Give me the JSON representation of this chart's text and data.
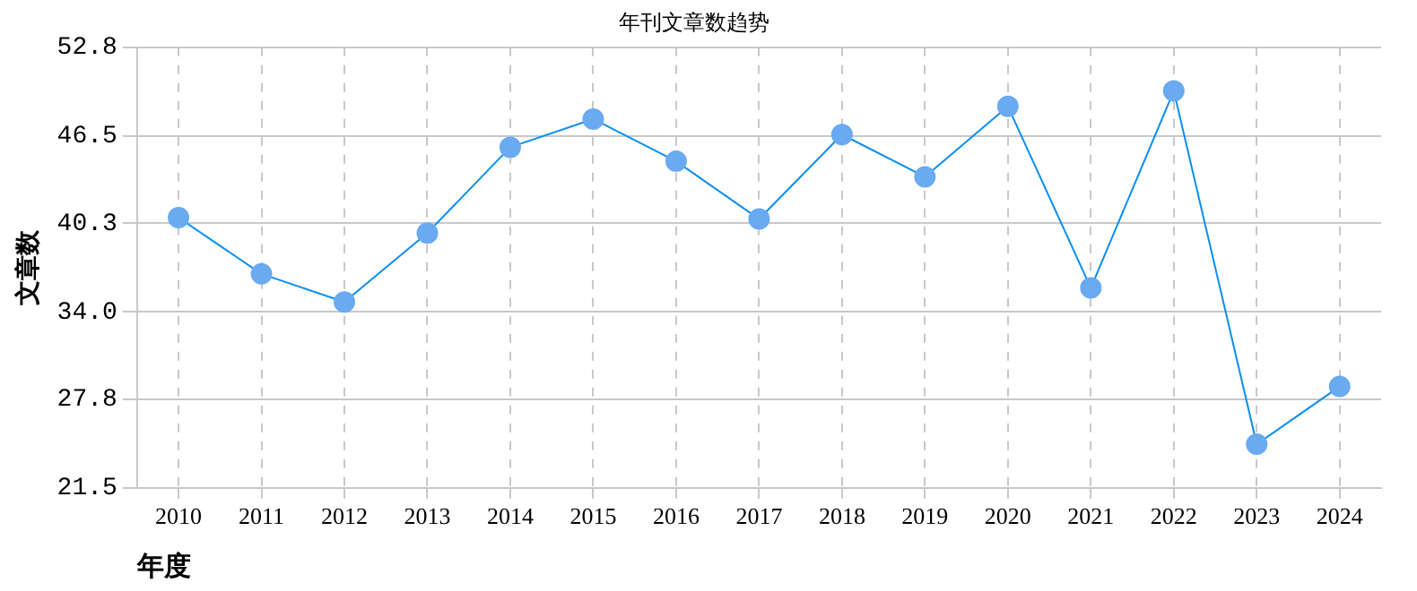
{
  "chart_data": {
    "type": "line",
    "title": "年刊文章数趋势",
    "xlabel": "年度",
    "ylabel": "文章数",
    "categories": [
      "2010",
      "2011",
      "2012",
      "2013",
      "2014",
      "2015",
      "2016",
      "2017",
      "2018",
      "2019",
      "2020",
      "2021",
      "2022",
      "2023",
      "2024"
    ],
    "series": [
      {
        "color": "#0a8ef0",
        "values": [
          40.7,
          36.7,
          34.7,
          39.6,
          45.7,
          47.7,
          44.7,
          40.6,
          46.6,
          43.6,
          48.6,
          35.7,
          49.7,
          24.6,
          28.7
        ]
      }
    ],
    "ylim": [
      21.5,
      52.8
    ],
    "yticks": [
      {
        "value": 21.5,
        "label": "21.5"
      },
      {
        "value": 27.8,
        "label": "27.8"
      },
      {
        "value": 34.0,
        "label": "34.0"
      },
      {
        "value": 40.3,
        "label": "40.3"
      },
      {
        "value": 46.5,
        "label": "46.5"
      },
      {
        "value": 52.8,
        "label": "52.8"
      }
    ],
    "grid": true,
    "marker": "circle",
    "line_style": "solid",
    "legend": false
  }
}
